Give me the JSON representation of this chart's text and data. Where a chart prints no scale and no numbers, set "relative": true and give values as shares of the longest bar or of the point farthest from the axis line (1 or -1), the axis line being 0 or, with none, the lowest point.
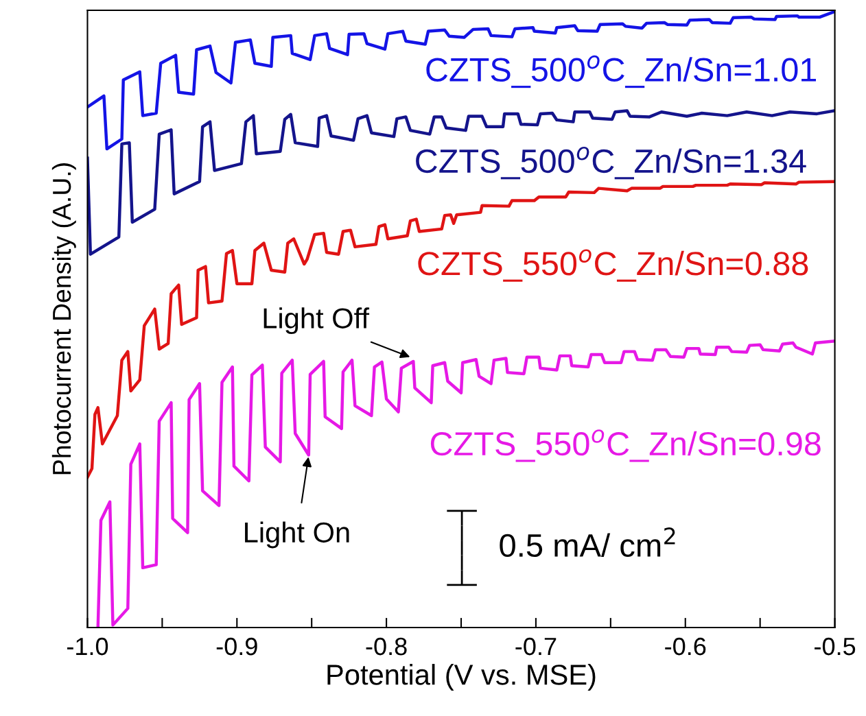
{
  "chart_data": {
    "type": "line",
    "relative": true,
    "xlabel": "Potential (V vs. MSE)",
    "ylabel": "Photocurrent Density (A.U.)",
    "xlim": [
      -1.0,
      -0.5
    ],
    "xticks": [
      {
        "value": -1.0,
        "label": "-1.0"
      },
      {
        "value": -0.95,
        "label": null
      },
      {
        "value": -0.9,
        "label": "-0.9"
      },
      {
        "value": -0.85,
        "label": null
      },
      {
        "value": -0.8,
        "label": "-0.8"
      },
      {
        "value": -0.75,
        "label": null
      },
      {
        "value": -0.7,
        "label": "-0.7"
      },
      {
        "value": -0.65,
        "label": null
      },
      {
        "value": -0.6,
        "label": "-0.6"
      },
      {
        "value": -0.55,
        "label": null
      },
      {
        "value": -0.5,
        "label": "-0.5"
      }
    ],
    "tick_labels": "x",
    "grid": false,
    "legend": false,
    "marker": "none",
    "line_style": "solid",
    "series": [
      {
        "name": "CZTS_500$^{o}$C_Zn/Sn=1.01",
        "color": "#1414e6",
        "x": [
          -1.0,
          -0.989,
          -0.987,
          -0.977,
          -0.976,
          -0.965,
          -0.963,
          -0.954,
          -0.951,
          -0.941,
          -0.939,
          -0.929,
          -0.927,
          -0.918,
          -0.914,
          -0.904,
          -0.901,
          -0.891,
          -0.888,
          -0.877,
          -0.876,
          -0.864,
          -0.863,
          -0.851,
          -0.848,
          -0.84,
          -0.838,
          -0.826,
          -0.825,
          -0.815,
          -0.813,
          -0.801,
          -0.799,
          -0.789,
          -0.787,
          -0.774,
          -0.772,
          -0.761,
          -0.758,
          -0.748,
          -0.742,
          -0.732,
          -0.73,
          -0.716,
          -0.714,
          -0.702,
          -0.701,
          -0.687,
          -0.686,
          -0.674,
          -0.672,
          -0.659,
          -0.657,
          -0.642,
          -0.64,
          -0.629,
          -0.626,
          -0.614,
          -0.612,
          -0.599,
          -0.597,
          -0.584,
          -0.582,
          -0.57,
          -0.568,
          -0.556,
          -0.554,
          -0.54,
          -0.539,
          -0.525,
          -0.524,
          -0.51,
          -0.5
        ],
        "values": [
          0.845,
          0.863,
          0.777,
          0.793,
          0.889,
          0.902,
          0.831,
          0.835,
          0.916,
          0.929,
          0.869,
          0.866,
          0.938,
          0.944,
          0.901,
          0.884,
          0.95,
          0.954,
          0.916,
          0.911,
          0.958,
          0.961,
          0.932,
          0.922,
          0.961,
          0.964,
          0.94,
          0.93,
          0.963,
          0.964,
          0.948,
          0.939,
          0.964,
          0.968,
          0.952,
          0.947,
          0.968,
          0.97,
          0.96,
          0.958,
          0.971,
          0.972,
          0.961,
          0.959,
          0.972,
          0.974,
          0.968,
          0.965,
          0.974,
          0.977,
          0.969,
          0.968,
          0.979,
          0.98,
          0.976,
          0.973,
          0.981,
          0.982,
          0.979,
          0.978,
          0.986,
          0.987,
          0.982,
          0.981,
          0.99,
          0.991,
          0.988,
          0.987,
          0.992,
          0.993,
          0.991,
          0.991,
          1.0
        ]
      },
      {
        "name": "CZTS_500$^{o}$C_Zn/Sn=1.34",
        "color": "#14148c",
        "x": [
          -1.0,
          -0.998,
          -0.979,
          -0.977,
          -0.972,
          -0.97,
          -0.955,
          -0.952,
          -0.944,
          -0.942,
          -0.925,
          -0.923,
          -0.918,
          -0.915,
          -0.897,
          -0.894,
          -0.889,
          -0.887,
          -0.871,
          -0.868,
          -0.864,
          -0.861,
          -0.846,
          -0.845,
          -0.84,
          -0.837,
          -0.822,
          -0.819,
          -0.813,
          -0.81,
          -0.795,
          -0.793,
          -0.787,
          -0.784,
          -0.771,
          -0.768,
          -0.763,
          -0.76,
          -0.747,
          -0.745,
          -0.736,
          -0.733,
          -0.722,
          -0.721,
          -0.712,
          -0.71,
          -0.699,
          -0.697,
          -0.689,
          -0.686,
          -0.675,
          -0.674,
          -0.664,
          -0.662,
          -0.649,
          -0.647,
          -0.639,
          -0.637,
          -0.624,
          -0.616,
          -0.599,
          -0.589,
          -0.572,
          -0.559,
          -0.542,
          -0.53,
          -0.512,
          -0.5
        ],
        "values": [
          0.762,
          0.606,
          0.634,
          0.785,
          0.787,
          0.658,
          0.679,
          0.801,
          0.808,
          0.704,
          0.724,
          0.813,
          0.821,
          0.742,
          0.753,
          0.821,
          0.831,
          0.769,
          0.773,
          0.825,
          0.833,
          0.787,
          0.781,
          0.827,
          0.831,
          0.798,
          0.791,
          0.826,
          0.831,
          0.803,
          0.797,
          0.826,
          0.829,
          0.807,
          0.801,
          0.829,
          0.829,
          0.811,
          0.807,
          0.83,
          0.83,
          0.813,
          0.813,
          0.834,
          0.834,
          0.817,
          0.816,
          0.834,
          0.835,
          0.824,
          0.821,
          0.837,
          0.837,
          0.827,
          0.825,
          0.837,
          0.839,
          0.83,
          0.829,
          0.837,
          0.83,
          0.835,
          0.831,
          0.837,
          0.831,
          0.837,
          0.834,
          0.839
        ]
      },
      {
        "name": "CZTS_550$^{o}$C_Zn/Sn=0.88",
        "color": "#e01414",
        "x": [
          -1.0,
          -0.997,
          -0.995,
          -0.993,
          -0.99,
          -0.98,
          -0.977,
          -0.973,
          -0.971,
          -0.965,
          -0.962,
          -0.955,
          -0.952,
          -0.946,
          -0.944,
          -0.939,
          -0.937,
          -0.927,
          -0.926,
          -0.921,
          -0.919,
          -0.91,
          -0.907,
          -0.903,
          -0.9,
          -0.89,
          -0.888,
          -0.882,
          -0.877,
          -0.868,
          -0.866,
          -0.862,
          -0.855,
          -0.853,
          -0.848,
          -0.842,
          -0.84,
          -0.832,
          -0.829,
          -0.824,
          -0.821,
          -0.807,
          -0.805,
          -0.801,
          -0.799,
          -0.786,
          -0.784,
          -0.78,
          -0.778,
          -0.763,
          -0.761,
          -0.757,
          -0.755,
          -0.753,
          -0.737,
          -0.736,
          -0.718,
          -0.716,
          -0.701,
          -0.698,
          -0.68,
          -0.678,
          -0.661,
          -0.658,
          -0.639,
          -0.636,
          -0.617,
          -0.615,
          -0.595,
          -0.593,
          -0.572,
          -0.57,
          -0.549,
          -0.547,
          -0.526,
          -0.524,
          -0.5
        ],
        "values": [
          0.244,
          0.258,
          0.346,
          0.357,
          0.298,
          0.344,
          0.434,
          0.448,
          0.384,
          0.402,
          0.49,
          0.517,
          0.452,
          0.461,
          0.542,
          0.556,
          0.492,
          0.503,
          0.58,
          0.586,
          0.527,
          0.53,
          0.607,
          0.612,
          0.558,
          0.558,
          0.612,
          0.624,
          0.58,
          0.577,
          0.624,
          0.631,
          0.59,
          0.598,
          0.638,
          0.64,
          0.609,
          0.606,
          0.643,
          0.645,
          0.618,
          0.622,
          0.651,
          0.654,
          0.631,
          0.636,
          0.66,
          0.663,
          0.643,
          0.647,
          0.669,
          0.67,
          0.656,
          0.67,
          0.674,
          0.685,
          0.684,
          0.693,
          0.693,
          0.699,
          0.699,
          0.707,
          0.706,
          0.713,
          0.709,
          0.713,
          0.713,
          0.716,
          0.716,
          0.718,
          0.718,
          0.72,
          0.719,
          0.722,
          0.72,
          0.723,
          0.724
        ]
      },
      {
        "name": "CZTS_550$^{o}$C_Zn/Sn=0.98",
        "color": "#e619e6",
        "x": [
          -0.993,
          -0.991,
          -0.985,
          -0.983,
          -0.973,
          -0.971,
          -0.965,
          -0.963,
          -0.954,
          -0.952,
          -0.944,
          -0.943,
          -0.933,
          -0.932,
          -0.925,
          -0.923,
          -0.912,
          -0.91,
          -0.903,
          -0.902,
          -0.892,
          -0.89,
          -0.883,
          -0.881,
          -0.871,
          -0.87,
          -0.863,
          -0.861,
          -0.852,
          -0.851,
          -0.842,
          -0.841,
          -0.83,
          -0.829,
          -0.823,
          -0.821,
          -0.81,
          -0.808,
          -0.803,
          -0.8,
          -0.792,
          -0.79,
          -0.782,
          -0.781,
          -0.77,
          -0.769,
          -0.761,
          -0.759,
          -0.75,
          -0.749,
          -0.74,
          -0.738,
          -0.73,
          -0.728,
          -0.72,
          -0.719,
          -0.708,
          -0.706,
          -0.698,
          -0.697,
          -0.686,
          -0.684,
          -0.677,
          -0.676,
          -0.665,
          -0.663,
          -0.656,
          -0.654,
          -0.643,
          -0.641,
          -0.634,
          -0.632,
          -0.622,
          -0.62,
          -0.613,
          -0.61,
          -0.601,
          -0.599,
          -0.591,
          -0.59,
          -0.58,
          -0.579,
          -0.571,
          -0.569,
          -0.559,
          -0.557,
          -0.55,
          -0.548,
          -0.537,
          -0.535,
          -0.528,
          -0.526,
          -0.515,
          -0.513,
          -0.5
        ],
        "values": [
          0.0,
          0.174,
          0.204,
          0.004,
          0.031,
          0.265,
          0.298,
          0.097,
          0.102,
          0.335,
          0.365,
          0.177,
          0.154,
          0.37,
          0.396,
          0.222,
          0.198,
          0.398,
          0.423,
          0.262,
          0.238,
          0.41,
          0.426,
          0.293,
          0.269,
          0.413,
          0.434,
          0.315,
          0.28,
          0.411,
          0.432,
          0.342,
          0.323,
          0.415,
          0.434,
          0.36,
          0.344,
          0.423,
          0.431,
          0.371,
          0.35,
          0.421,
          0.432,
          0.389,
          0.365,
          0.425,
          0.43,
          0.4,
          0.381,
          0.43,
          0.435,
          0.408,
          0.396,
          0.434,
          0.437,
          0.414,
          0.412,
          0.439,
          0.439,
          0.421,
          0.418,
          0.441,
          0.441,
          0.425,
          0.423,
          0.443,
          0.443,
          0.43,
          0.43,
          0.448,
          0.448,
          0.435,
          0.434,
          0.451,
          0.451,
          0.44,
          0.439,
          0.453,
          0.453,
          0.444,
          0.443,
          0.455,
          0.455,
          0.448,
          0.447,
          0.458,
          0.459,
          0.451,
          0.449,
          0.46,
          0.462,
          0.455,
          0.444,
          0.462,
          0.465
        ]
      }
    ],
    "annotations": [
      {
        "text": "Light Off",
        "x": -0.783,
        "y": 0.438
      },
      {
        "text": "Light On",
        "x": -0.852,
        "y": 0.28
      },
      "0.5 mA/ cm$^{2}$"
    ]
  }
}
